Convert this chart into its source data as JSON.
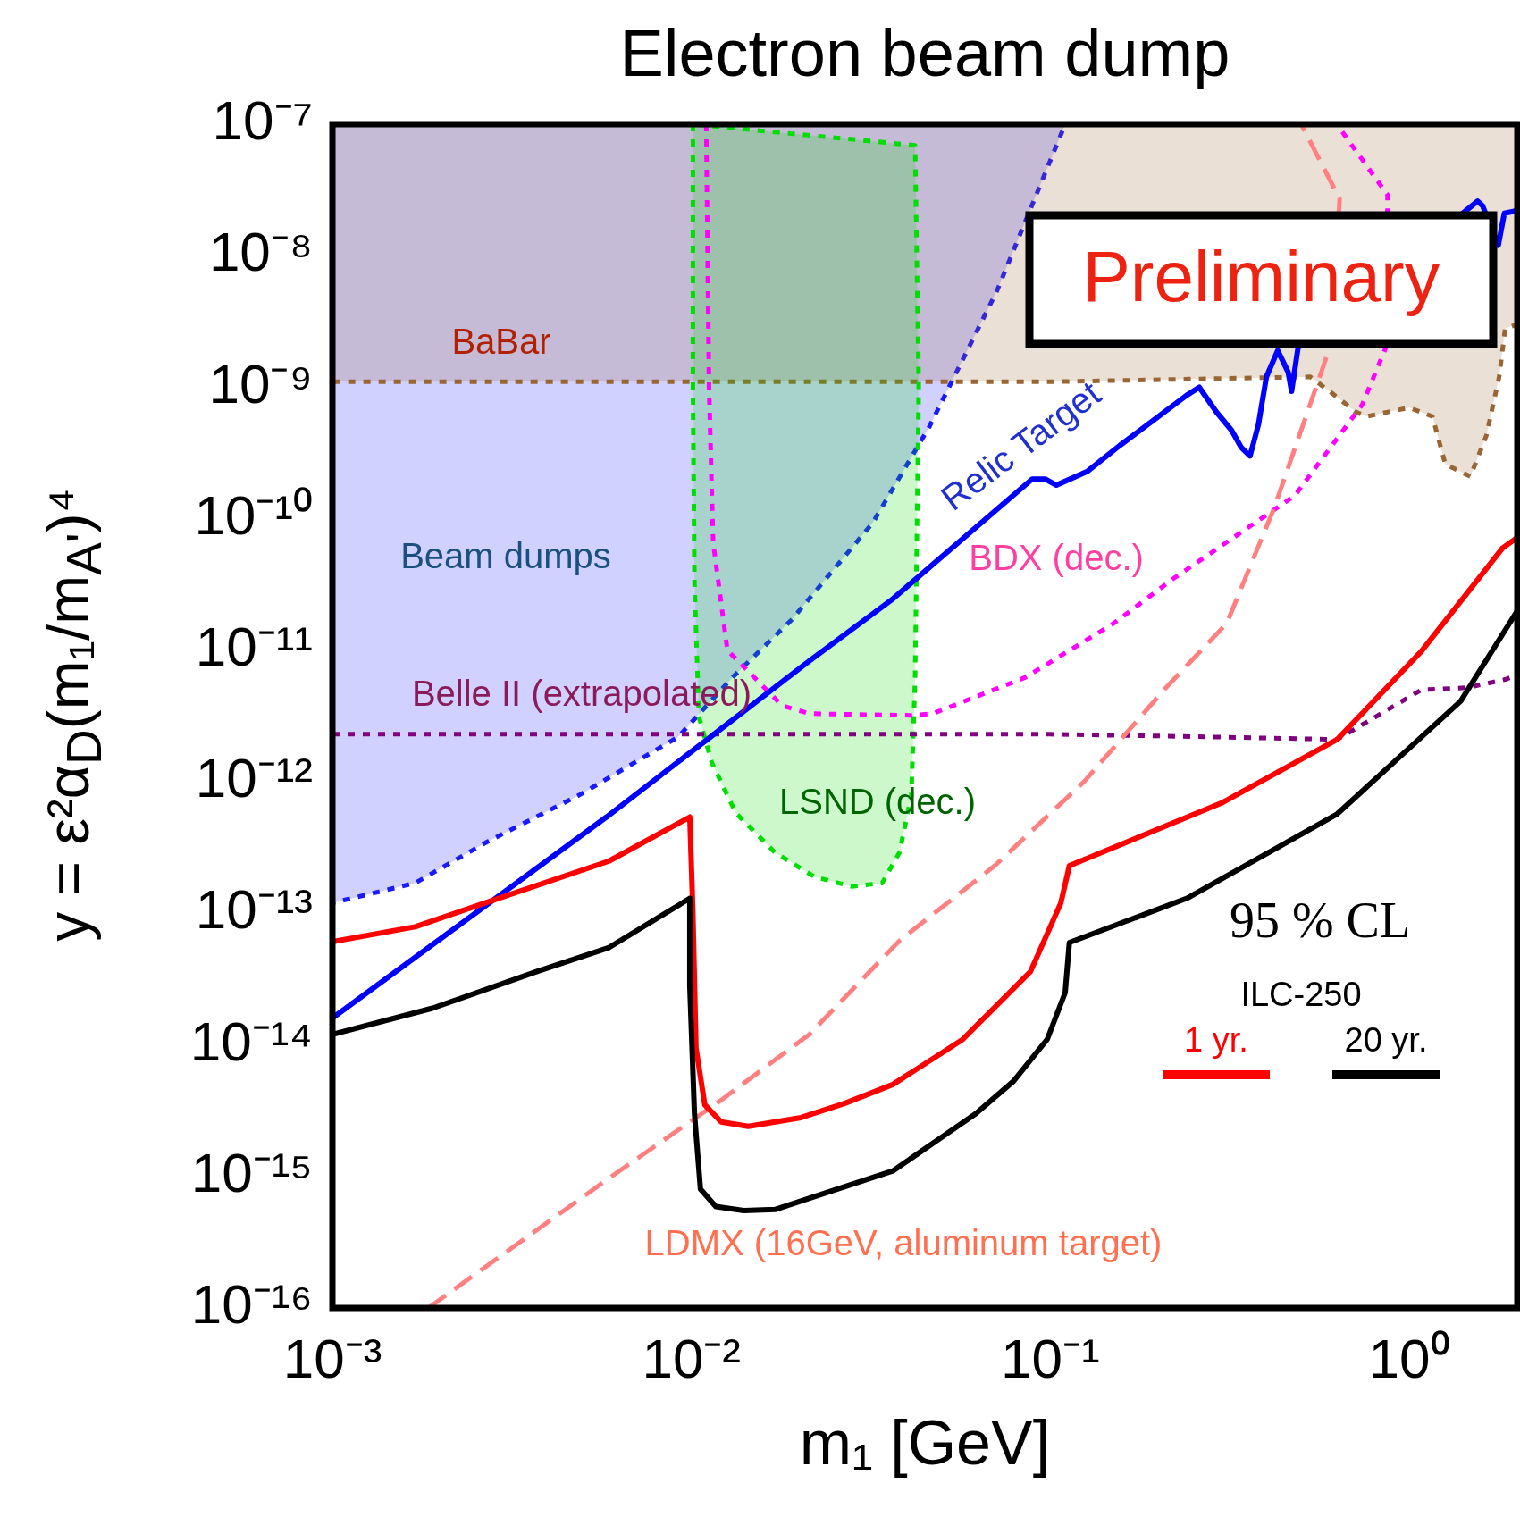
{
  "chart_data": {
    "type": "line",
    "title": "Electron beam dump",
    "xlabel": "m₁ [GeV]",
    "ylabel": "y = ε²α$_{D}$(m₁/m$_{A'}$)⁴",
    "legend_title": "ILC-250",
    "legend": "bottom right",
    "log": "xy",
    "marker": "none",
    "xlim": [
      0.001,
      2
    ],
    "ylim": [
      1e-16,
      1e-07
    ],
    "xticks": [
      {
        "value": 0.001,
        "label": "10⁻³"
      },
      {
        "value": 0.01,
        "label": "10⁻²"
      },
      {
        "value": 0.1,
        "label": "10⁻¹"
      },
      {
        "value": 1,
        "label": "10⁰"
      }
    ],
    "yticks": [
      {
        "value": 1e-16,
        "label": "10⁻¹⁶"
      },
      {
        "value": 1e-15,
        "label": "10⁻¹⁵"
      },
      {
        "value": 1e-14,
        "label": "10⁻¹⁴"
      },
      {
        "value": 1e-13,
        "label": "10⁻¹³"
      },
      {
        "value": 1e-12,
        "label": "10⁻¹²"
      },
      {
        "value": 1e-11,
        "label": "10⁻¹¹"
      },
      {
        "value": 1e-10,
        "label": "10⁻¹⁰"
      },
      {
        "value": 1e-09,
        "label": "10⁻⁹"
      },
      {
        "value": 1e-08,
        "label": "10⁻⁸"
      },
      {
        "value": 1e-07,
        "label": "10⁻⁷"
      }
    ],
    "series": [
      {
        "type": "area",
        "line_style": "dotted",
        "color": "#1a1aff",
        "x": [
          0.001,
          0.001,
          0.0017,
          0.0027,
          0.0049,
          0.0092,
          0.013,
          0.019,
          0.032,
          0.046,
          0.071,
          0.11,
          0.001
        ],
        "values": [
          1e-07,
          1.2e-13,
          1.7e-13,
          3.5e-13,
          8e-13,
          2.2e-12,
          6.2e-12,
          1.7e-11,
          9.3e-11,
          5e-10,
          5.4e-09,
          1e-07,
          1e-07
        ]
      },
      {
        "type": "area",
        "line_style": "dotted",
        "color": "#996633",
        "x": [
          0.001,
          0.001,
          0.1,
          0.53,
          0.6,
          0.71,
          0.76,
          1.0,
          1.16,
          1.26,
          1.48,
          1.64,
          1.78,
          1.85,
          2,
          2,
          0.001
        ],
        "values": [
          1e-07,
          1.1e-09,
          1.1e-09,
          1.2e-09,
          9.3e-10,
          6.5e-10,
          6e-10,
          7e-10,
          6e-10,
          2.6e-10,
          2.1e-10,
          4.3e-10,
          1.2e-09,
          2.8e-09,
          3e-09,
          1e-07,
          1e-07
        ]
      },
      {
        "type": "area",
        "line_style": "dotted",
        "color": "#00dd00",
        "x": [
          0.0101,
          0.0101,
          0.0102,
          0.0105,
          0.0114,
          0.0133,
          0.0171,
          0.022,
          0.028,
          0.034,
          0.038,
          0.041,
          0.042,
          0.0425,
          0.043,
          0.042,
          0.0101
        ],
        "values": [
          1e-07,
          1e-09,
          3.3e-11,
          3.1e-12,
          1.4e-12,
          5.8e-13,
          2.9e-13,
          1.9e-13,
          1.6e-13,
          1.7e-13,
          2.9e-13,
          7.9e-13,
          6.2e-12,
          7.8e-11,
          1e-09,
          6.9e-08,
          1e-07
        ]
      },
      {
        "line_style": "dotted",
        "color": "#ff00ff",
        "x": [
          0.011,
          0.0112,
          0.0115,
          0.0126,
          0.0179,
          0.0213,
          0.041,
          0.047,
          0.085,
          0.15,
          0.22,
          0.48,
          0.74,
          0.86,
          0.87,
          0.64,
          0.63
        ],
        "values": [
          1e-07,
          1e-09,
          6.6e-11,
          1e-11,
          3.8e-12,
          3.3e-12,
          3.2e-12,
          3.3e-12,
          6.2e-12,
          1.6e-11,
          3.5e-11,
          1.5e-10,
          7.4e-10,
          2e-09,
          2.9e-08,
          9.3e-08,
          1e-07
        ]
      },
      {
        "line_style": "dotted",
        "color": "#800080",
        "x": [
          0.001,
          0.1,
          0.27,
          0.63,
          1.08,
          1.45,
          1.85,
          2
        ],
        "values": [
          2.3e-12,
          2.3e-12,
          2.2e-12,
          2.1e-12,
          5e-12,
          5.2e-12,
          6e-12,
          6.5e-12
        ]
      },
      {
        "line_style": "dashed",
        "color": "#ff8080",
        "x": [
          0.00185,
          0.0058,
          0.0121,
          0.0213,
          0.038,
          0.07,
          0.124,
          0.21,
          0.31,
          0.42,
          0.55,
          0.6,
          0.64,
          0.5
        ],
        "values": [
          1e-16,
          9.4e-16,
          3.8e-15,
          1.2e-14,
          6.2e-14,
          2.3e-13,
          1e-12,
          5.2e-12,
          1.6e-11,
          1.2e-10,
          1e-09,
          2e-09,
          2.7e-08,
          1e-07
        ]
      },
      {
        "line_style": "solid",
        "color": "#0000ff",
        "x": [
          0.001,
          0.0058,
          0.0213,
          0.036,
          0.089,
          0.097,
          0.104,
          0.127,
          0.156,
          0.24,
          0.26,
          0.29,
          0.32,
          0.34,
          0.36,
          0.38,
          0.4,
          0.43,
          0.46,
          0.47,
          0.49,
          1.55,
          1.6,
          1.77,
          1.84,
          2
        ],
        "values": [
          1.6e-14,
          5.4e-13,
          8.3e-12,
          2.4e-11,
          2e-10,
          2e-10,
          1.8e-10,
          2.3e-10,
          3.6e-10,
          8.7e-10,
          1e-09,
          6.5e-10,
          4.7e-10,
          3.5e-10,
          3e-10,
          5.2e-10,
          1.2e-09,
          1.9e-09,
          1.3e-09,
          9.3e-10,
          2e-09,
          2.6e-08,
          2.4e-08,
          1.2e-08,
          2.1e-08,
          2.2e-08
        ]
      },
      {
        "line_style": "solid",
        "name": "1 yr.",
        "color": "#ff0000",
        "x": [
          0.001,
          0.0017,
          0.0029,
          0.0059,
          0.0099,
          0.0101,
          0.0103,
          0.0109,
          0.0121,
          0.0144,
          0.0202,
          0.0268,
          0.0364,
          0.057,
          0.088,
          0.107,
          0.113,
          0.3,
          0.63,
          1.08,
          1.82,
          2
        ],
        "values": [
          6.1e-14,
          7.9e-14,
          1.3e-13,
          2.5e-13,
          5.4e-13,
          1e-13,
          9.5e-15,
          3.5e-15,
          2.6e-15,
          2.4e-15,
          2.8e-15,
          3.6e-15,
          5e-15,
          1.1e-14,
          3.6e-14,
          1.2e-13,
          2.3e-13,
          6.9e-13,
          2.1e-12,
          9.8e-12,
          6e-11,
          7.2e-11
        ]
      },
      {
        "line_style": "solid",
        "name": "20 yr.",
        "color": "#000000",
        "x": [
          0.001,
          0.0019,
          0.0037,
          0.0059,
          0.0099,
          0.0099,
          0.0102,
          0.0106,
          0.0117,
          0.014,
          0.0171,
          0.0233,
          0.0364,
          0.062,
          0.079,
          0.098,
          0.11,
          0.113,
          0.24,
          0.63,
          1.39,
          2
        ],
        "values": [
          1.2e-14,
          1.9e-14,
          3.6e-14,
          5.5e-14,
          1.3e-13,
          2.8e-14,
          3e-15,
          8e-16,
          5.9e-16,
          5.5e-16,
          5.6e-16,
          7.4e-16,
          1.1e-15,
          3e-15,
          5.3e-15,
          1.1e-14,
          2.5e-14,
          6e-14,
          1.3e-13,
          5.7e-13,
          4.1e-12,
          2e-11
        ]
      }
    ],
    "annotations": [
      "Preliminary",
      "95 % CL",
      "BaBar",
      "Beam dumps",
      "Belle II (extrapolated)",
      "LSND (dec.)",
      "BDX (dec.)",
      "LDMX (16GeV, aluminum target)",
      "Relic Target"
    ]
  }
}
